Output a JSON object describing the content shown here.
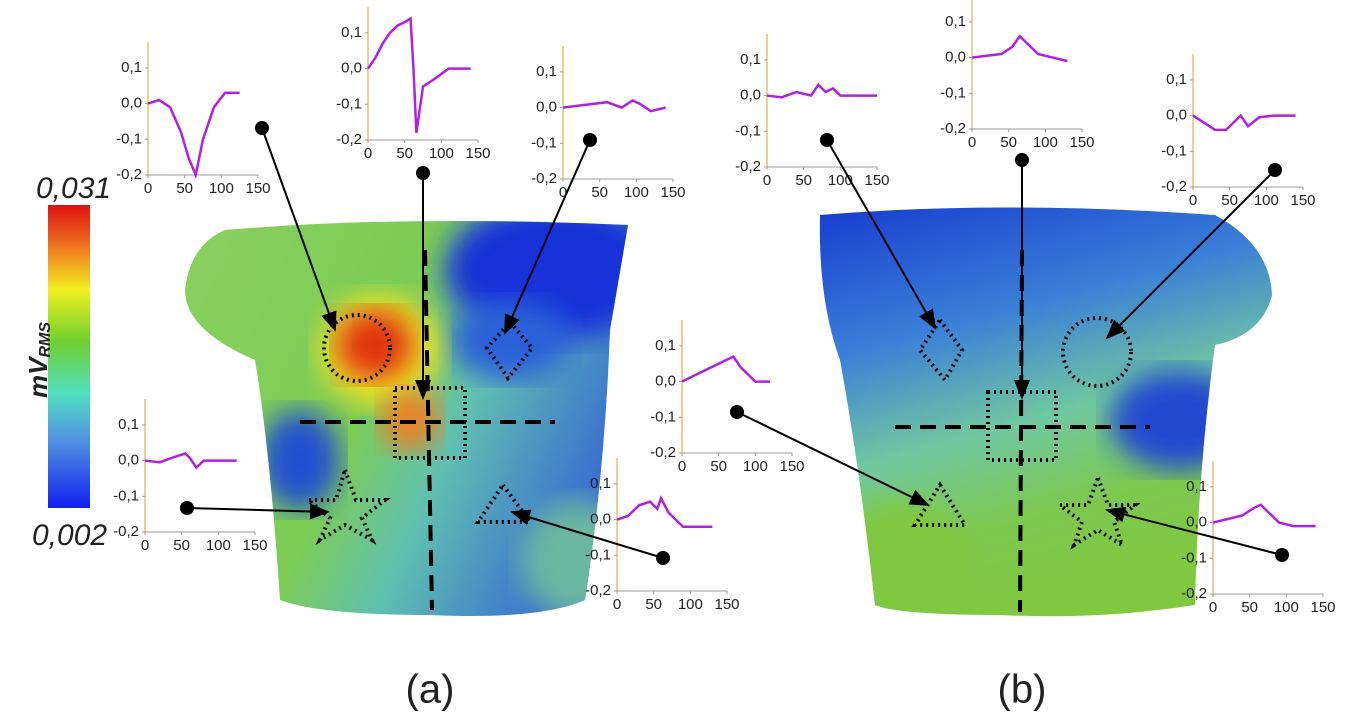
{
  "colorbar": {
    "max_label": "0,031",
    "min_label": "0,002",
    "unit": "mV",
    "unit_sub": "RMS"
  },
  "panel_labels": [
    "(a)",
    "(b)"
  ],
  "chart_data": [
    {
      "type": "line",
      "xlim": [
        0,
        150
      ],
      "ylim": [
        -0.2,
        0.15
      ],
      "xticks": [
        0,
        50,
        100,
        150
      ],
      "yticks": [
        {
          "value": 0.1,
          "label": "0,1"
        },
        {
          "value": 0,
          "label": "0,0"
        },
        {
          "value": -0.1,
          "label": "-0,1"
        },
        {
          "value": -0.2,
          "label": "-0,2"
        }
      ],
      "x": [
        0,
        15,
        30,
        45,
        55,
        65,
        75,
        90,
        105,
        125
      ],
      "series": [
        {
          "color": "#b020e0",
          "values": [
            0,
            0.01,
            -0.01,
            -0.08,
            -0.15,
            -0.2,
            -0.1,
            -0.01,
            0.03,
            0.03
          ]
        }
      ]
    },
    {
      "type": "line",
      "xlim": [
        0,
        150
      ],
      "ylim": [
        -0.2,
        0.15
      ],
      "xticks": [
        0,
        50,
        100,
        150
      ],
      "yticks": [
        {
          "value": 0.1,
          "label": "0,1"
        },
        {
          "value": 0,
          "label": "0,0"
        },
        {
          "value": -0.1,
          "label": "-0,1"
        },
        {
          "value": -0.2,
          "label": "-0,2"
        }
      ],
      "x": [
        0,
        10,
        20,
        30,
        40,
        50,
        58,
        62,
        66,
        75,
        90,
        110,
        140
      ],
      "series": [
        {
          "color": "#b020e0",
          "values": [
            0,
            0.03,
            0.07,
            0.1,
            0.12,
            0.13,
            0.14,
            0,
            -0.18,
            -0.05,
            -0.03,
            0,
            0
          ]
        }
      ]
    },
    {
      "type": "line",
      "xlim": [
        0,
        150
      ],
      "ylim": [
        -0.2,
        0.15
      ],
      "xticks": [
        0,
        50,
        100,
        150
      ],
      "yticks": [
        {
          "value": 0.1,
          "label": "0,1"
        },
        {
          "value": 0,
          "label": "0,0"
        },
        {
          "value": -0.1,
          "label": "-0,1"
        },
        {
          "value": -0.2,
          "label": "-0,2"
        }
      ],
      "x": [
        0,
        20,
        40,
        60,
        80,
        95,
        105,
        120,
        140
      ],
      "series": [
        {
          "color": "#b020e0",
          "values": [
            0,
            0.005,
            0.01,
            0.015,
            0,
            0.02,
            0.01,
            -0.01,
            0
          ]
        }
      ]
    },
    {
      "type": "line",
      "xlim": [
        0,
        150
      ],
      "ylim": [
        -0.2,
        0.15
      ],
      "xticks": [
        0,
        50,
        100,
        150
      ],
      "yticks": [
        {
          "value": 0.1,
          "label": "0,1"
        },
        {
          "value": 0,
          "label": "0,0"
        },
        {
          "value": -0.1,
          "label": "-0,1"
        },
        {
          "value": -0.2,
          "label": "-0,2"
        }
      ],
      "x": [
        0,
        20,
        40,
        55,
        62,
        70,
        80,
        100,
        125
      ],
      "series": [
        {
          "color": "#b020e0",
          "values": [
            0,
            -0.005,
            0.01,
            0.02,
            0.005,
            -0.02,
            0,
            0,
            0
          ]
        }
      ]
    },
    {
      "type": "line",
      "xlim": [
        0,
        150
      ],
      "ylim": [
        -0.2,
        0.15
      ],
      "xticks": [
        0,
        50,
        100,
        150
      ],
      "yticks": [
        {
          "value": 0.1,
          "label": "0,1"
        },
        {
          "value": 0,
          "label": "0,0"
        },
        {
          "value": -0.1,
          "label": "-0,1"
        },
        {
          "value": -0.2,
          "label": "-0,2"
        }
      ],
      "x": [
        0,
        15,
        30,
        45,
        55,
        60,
        70,
        90,
        110,
        130
      ],
      "series": [
        {
          "color": "#b020e0",
          "values": [
            0,
            0.01,
            0.04,
            0.05,
            0.03,
            0.06,
            0.02,
            -0.02,
            -0.02,
            -0.02
          ]
        }
      ]
    },
    {
      "type": "line",
      "xlim": [
        0,
        150
      ],
      "ylim": [
        -0.2,
        0.15
      ],
      "xticks": [
        0,
        50,
        100,
        150
      ],
      "yticks": [
        {
          "value": 0.1,
          "label": "0,1"
        },
        {
          "value": 0,
          "label": "0,0"
        },
        {
          "value": -0.1,
          "label": "-0,1"
        },
        {
          "value": -0.2,
          "label": "-0,2"
        }
      ],
      "x": [
        0,
        20,
        40,
        60,
        70,
        80,
        90,
        100,
        120,
        150
      ],
      "series": [
        {
          "color": "#b020e0",
          "values": [
            0,
            -0.005,
            0.01,
            0,
            0.03,
            0.01,
            0.02,
            0,
            0,
            0
          ]
        }
      ]
    },
    {
      "type": "line",
      "xlim": [
        0,
        150
      ],
      "ylim": [
        -0.2,
        0.15
      ],
      "xticks": [
        0,
        50,
        100,
        150
      ],
      "yticks": [
        {
          "value": 0.1,
          "label": "0,1"
        },
        {
          "value": 0,
          "label": "0,0"
        },
        {
          "value": -0.1,
          "label": "-0,1"
        },
        {
          "value": -0.2,
          "label": "-0,2"
        }
      ],
      "x": [
        0,
        20,
        40,
        55,
        65,
        75,
        90,
        110,
        130
      ],
      "series": [
        {
          "color": "#b020e0",
          "values": [
            0,
            0.005,
            0.01,
            0.03,
            0.06,
            0.04,
            0.01,
            0,
            -0.01
          ]
        }
      ]
    },
    {
      "type": "line",
      "xlim": [
        0,
        150
      ],
      "ylim": [
        -0.2,
        0.15
      ],
      "xticks": [
        0,
        50,
        100,
        150
      ],
      "yticks": [
        {
          "value": 0.1,
          "label": "0,1"
        },
        {
          "value": 0,
          "label": "0,0"
        },
        {
          "value": -0.1,
          "label": "-0,1"
        },
        {
          "value": -0.2,
          "label": "-0,2"
        }
      ],
      "x": [
        0,
        15,
        30,
        45,
        55,
        65,
        75,
        90,
        110,
        140
      ],
      "series": [
        {
          "color": "#b020e0",
          "values": [
            0,
            -0.02,
            -0.04,
            -0.04,
            -0.02,
            0,
            -0.03,
            -0.005,
            0,
            0
          ]
        }
      ]
    },
    {
      "type": "line",
      "xlim": [
        0,
        150
      ],
      "ylim": [
        -0.2,
        0.15
      ],
      "xticks": [
        0,
        50,
        100,
        150
      ],
      "yticks": [
        {
          "value": 0.1,
          "label": "0,1"
        },
        {
          "value": 0,
          "label": "0,0"
        },
        {
          "value": -0.1,
          "label": "-0,1"
        },
        {
          "value": -0.2,
          "label": "-0,2"
        }
      ],
      "x": [
        0,
        20,
        40,
        60,
        70,
        80,
        100,
        120
      ],
      "series": [
        {
          "color": "#b020e0",
          "values": [
            0,
            0.02,
            0.04,
            0.06,
            0.07,
            0.04,
            0,
            0
          ]
        }
      ]
    },
    {
      "type": "line",
      "xlim": [
        0,
        150
      ],
      "ylim": [
        -0.2,
        0.15
      ],
      "xticks": [
        0,
        50,
        100,
        150
      ],
      "yticks": [
        {
          "value": 0.1,
          "label": "0,1"
        },
        {
          "value": 0,
          "label": "0,0"
        },
        {
          "value": -0.1,
          "label": "-0,1"
        },
        {
          "value": -0.2,
          "label": "-0,2"
        }
      ],
      "x": [
        0,
        20,
        40,
        55,
        65,
        75,
        90,
        110,
        140
      ],
      "series": [
        {
          "color": "#b020e0",
          "values": [
            0,
            0.01,
            0.02,
            0.04,
            0.05,
            0.03,
            0,
            -0.01,
            -0.01
          ]
        }
      ]
    }
  ]
}
